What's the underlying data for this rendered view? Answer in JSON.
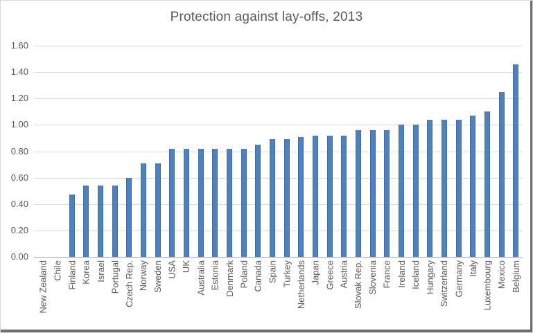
{
  "chart_data": {
    "type": "bar",
    "title": "Protection against lay-offs, 2013",
    "categories": [
      "New Zealand",
      "Chile",
      "Finland",
      "Korea",
      "Israel",
      "Portugal",
      "Czech Rep.",
      "Norway",
      "Sweden",
      "USA",
      "UK",
      "Australia",
      "Estonia",
      "Denmark",
      "Poland",
      "Canada",
      "Spain",
      "Turkey",
      "Netherlands",
      "Japan",
      "Greece",
      "Austria",
      "Slovak Rep.",
      "Slovenia",
      "France",
      "Ireland",
      "Iceland",
      "Hungary",
      "Switzerland",
      "Germany",
      "Italy",
      "Luxembourg",
      "Mexico",
      "Belgium"
    ],
    "values": [
      0.0,
      0.0,
      0.47,
      0.54,
      0.54,
      0.54,
      0.6,
      0.71,
      0.71,
      0.82,
      0.82,
      0.82,
      0.82,
      0.82,
      0.82,
      0.85,
      0.89,
      0.89,
      0.91,
      0.92,
      0.92,
      0.92,
      0.96,
      0.96,
      0.96,
      1.0,
      1.0,
      1.04,
      1.04,
      1.04,
      1.07,
      1.1,
      1.25,
      1.46
    ],
    "xlabel": "",
    "ylabel": "",
    "ylim": [
      0,
      1.6
    ],
    "ytick_step": 0.2,
    "ytick_labels": [
      "0.00",
      "0.20",
      "0.40",
      "0.60",
      "0.80",
      "1.00",
      "1.20",
      "1.40",
      "1.60"
    ],
    "grid": true,
    "legend_position": "none"
  },
  "colors": {
    "bar": "#4f81bd",
    "gridline": "#d9d9d9",
    "axis_line": "#a6a6a6",
    "text": "#595959",
    "frame_border": "#d8d8d8",
    "frame_shadow": "#6f6f6f",
    "background": "#ffffff"
  }
}
